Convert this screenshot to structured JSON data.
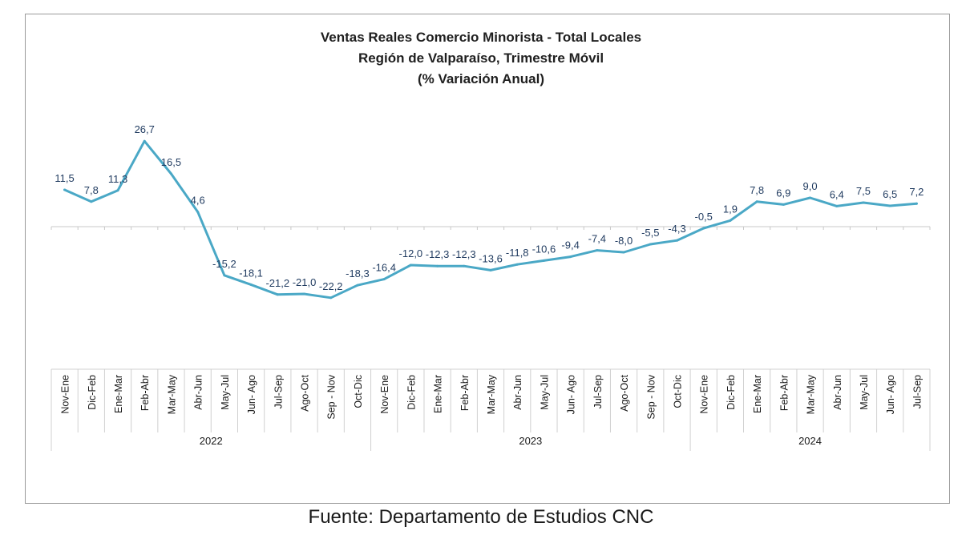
{
  "chart_data": {
    "type": "line",
    "title": "Ventas Reales Comercio Minorista - Total Locales",
    "subtitle": "Región de Valparaíso, Trimestre Móvil",
    "subtitle2": "(% Variación Anual)",
    "categories": [
      "Nov-Ene",
      "Dic-Feb",
      "Ene-Mar",
      "Feb-Abr",
      "Mar-May",
      "Abr-Jun",
      "May-Jul",
      "Jun- Ago",
      "Jul-Sep",
      "Ago-Oct",
      "Sep - Nov",
      "Oct-Dic",
      "Nov-Ene",
      "Dic-Feb",
      "Ene-Mar",
      "Feb-Abr",
      "Mar-May",
      "Abr-Jun",
      "May-Jul",
      "Jun- Ago",
      "Jul-Sep",
      "Ago-Oct",
      "Sep - Nov",
      "Oct-Dic",
      "Nov-Ene",
      "Dic-Feb",
      "Ene-Mar",
      "Feb-Abr",
      "Mar-May",
      "Abr-Jun",
      "May-Jul",
      "Jun- Ago",
      "Jul-Sep"
    ],
    "groups": [
      {
        "label": "2022",
        "count": 12
      },
      {
        "label": "2023",
        "count": 12
      },
      {
        "label": "2024",
        "count": 9
      }
    ],
    "values": [
      11.5,
      7.8,
      11.3,
      26.7,
      16.5,
      4.6,
      -15.2,
      -18.1,
      -21.2,
      -21.0,
      -22.2,
      -18.3,
      -16.4,
      -12.0,
      -12.3,
      -12.3,
      -13.6,
      -11.8,
      -10.6,
      -9.4,
      -7.4,
      -8.0,
      -5.5,
      -4.3,
      -0.5,
      1.9,
      7.8,
      6.9,
      9.0,
      6.4,
      7.5,
      6.5,
      7.2
    ],
    "data_labels": [
      "11,5",
      "7,8",
      "11,3",
      "26,7",
      "16,5",
      "4,6",
      "-15,2",
      "-18,1",
      "-21,2",
      "-21,0",
      "-22,2",
      "-18,3",
      "-16,4",
      "-12,0",
      "-12,3",
      "-12,3",
      "-13,6",
      "-11,8",
      "-10,6",
      "-9,4",
      "-7,4",
      "-8,0",
      "-5,5",
      "-4,3",
      "-0,5",
      "1,9",
      "7,8",
      "6,9",
      "9,0",
      "6,4",
      "7,5",
      "6,5",
      "7,2"
    ],
    "ylim": [
      -30,
      35
    ],
    "grid": false,
    "line_color": "#4aa8c6",
    "label_color": "#1f3a5f"
  },
  "footer": "Fuente: Departamento de Estudios CNC"
}
